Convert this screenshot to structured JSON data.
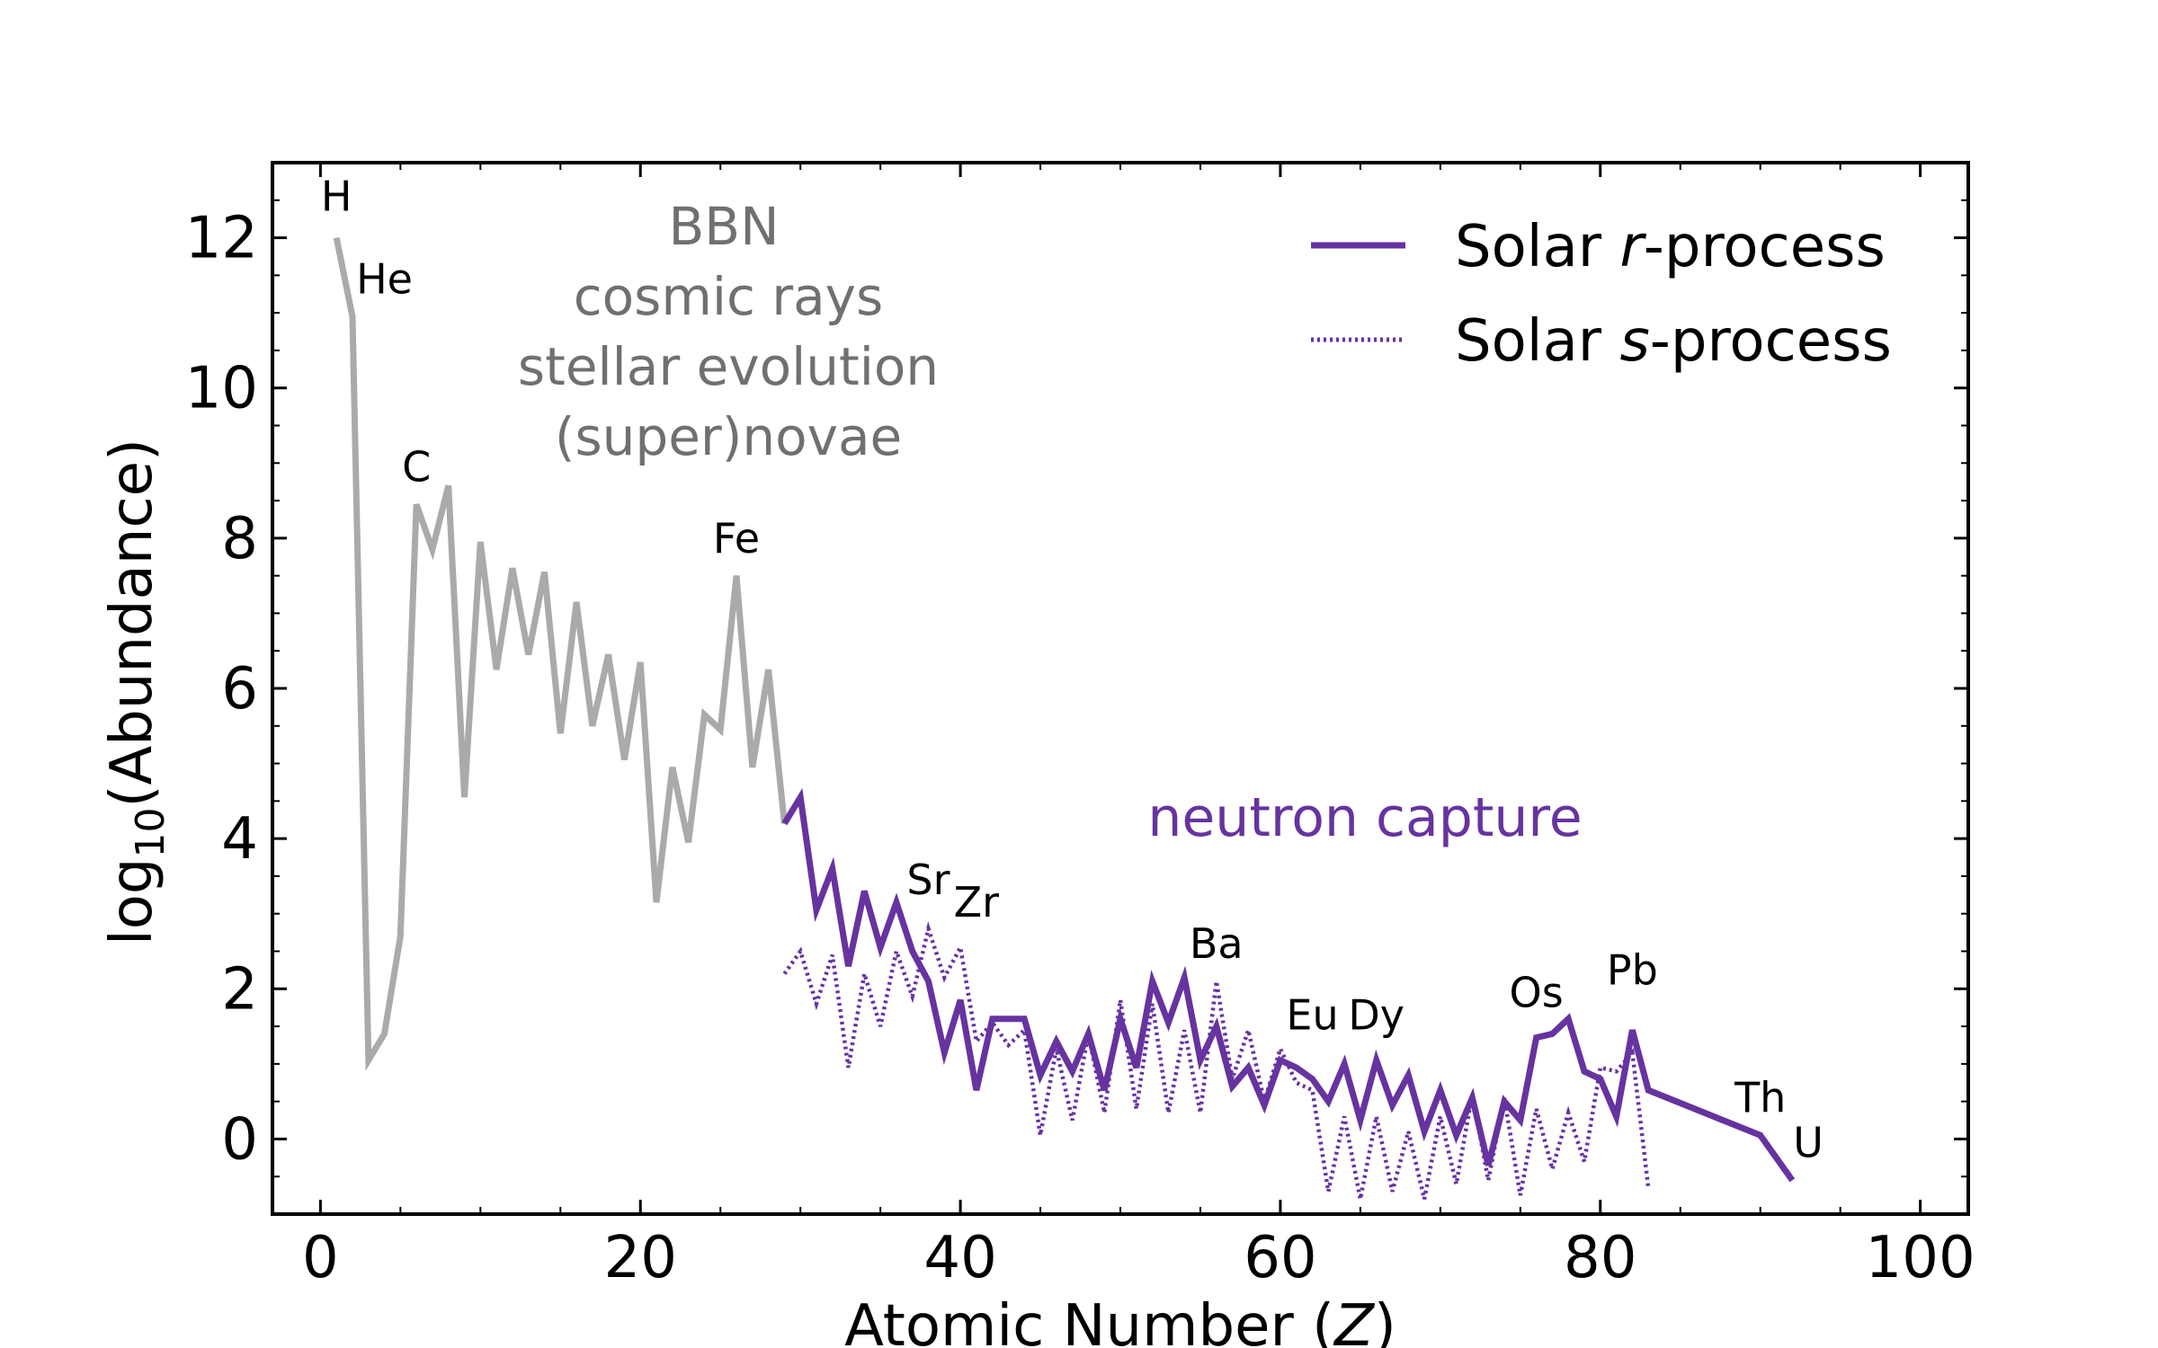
{
  "chart_data": {
    "type": "line",
    "xlabel_main": "Atomic Number (",
    "xlabel_var": "Z",
    "xlabel_end": ")",
    "ylabel_main": "log",
    "ylabel_sub": "10",
    "ylabel_end": "(Abundance)",
    "xlim": [
      -3,
      103
    ],
    "ylim": [
      -1.0,
      13.0
    ],
    "xticks": [
      0,
      20,
      40,
      60,
      80,
      100
    ],
    "yticks": [
      0,
      2,
      4,
      6,
      8,
      10,
      12
    ],
    "legend_position": "top-right",
    "series": [
      {
        "name_pre": "Solar ",
        "name_var": "r",
        "name_post": "-process",
        "style": "solid",
        "color": "#6633a0",
        "points": [
          [
            29,
            4.2
          ],
          [
            30,
            4.55
          ],
          [
            31,
            3.05
          ],
          [
            32,
            3.6
          ],
          [
            33,
            2.3
          ],
          [
            34,
            3.3
          ],
          [
            35,
            2.55
          ],
          [
            36,
            3.15
          ],
          [
            37,
            2.5
          ],
          [
            38,
            2.1
          ],
          [
            39,
            1.15
          ],
          [
            40,
            1.85
          ],
          [
            41,
            0.65
          ],
          [
            42,
            1.6
          ],
          [
            43,
            1.6
          ],
          [
            44,
            1.6
          ],
          [
            45,
            0.85
          ],
          [
            46,
            1.3
          ],
          [
            47,
            0.9
          ],
          [
            48,
            1.4
          ],
          [
            49,
            0.65
          ],
          [
            50,
            1.6
          ],
          [
            51,
            0.95
          ],
          [
            52,
            2.1
          ],
          [
            53,
            1.55
          ],
          [
            54,
            2.15
          ],
          [
            55,
            1.05
          ],
          [
            56,
            1.5
          ],
          [
            57,
            0.7
          ],
          [
            58,
            0.95
          ],
          [
            59,
            0.45
          ],
          [
            60,
            1.05
          ],
          [
            61,
            0.95
          ],
          [
            62,
            0.8
          ],
          [
            63,
            0.5
          ],
          [
            64,
            1.0
          ],
          [
            65,
            0.25
          ],
          [
            66,
            1.05
          ],
          [
            67,
            0.45
          ],
          [
            68,
            0.85
          ],
          [
            69,
            0.1
          ],
          [
            70,
            0.65
          ],
          [
            71,
            0.05
          ],
          [
            72,
            0.55
          ],
          [
            73,
            -0.35
          ],
          [
            74,
            0.5
          ],
          [
            75,
            0.25
          ],
          [
            76,
            1.35
          ],
          [
            77,
            1.4
          ],
          [
            78,
            1.6
          ],
          [
            79,
            0.9
          ],
          [
            80,
            0.8
          ],
          [
            81,
            0.3
          ],
          [
            82,
            1.45
          ],
          [
            83,
            0.65
          ],
          [
            90,
            0.05
          ],
          [
            92,
            -0.55
          ]
        ]
      },
      {
        "name_pre": "Solar ",
        "name_var": "s",
        "name_post": "-process",
        "style": "dotted",
        "color": "#6633a0",
        "points": [
          [
            29,
            2.2
          ],
          [
            30,
            2.5
          ],
          [
            31,
            1.8
          ],
          [
            32,
            2.45
          ],
          [
            33,
            0.95
          ],
          [
            34,
            2.2
          ],
          [
            35,
            1.5
          ],
          [
            36,
            2.5
          ],
          [
            37,
            1.9
          ],
          [
            38,
            2.8
          ],
          [
            39,
            2.15
          ],
          [
            40,
            2.55
          ],
          [
            41,
            1.3
          ],
          [
            42,
            1.55
          ],
          [
            43,
            1.25
          ],
          [
            44,
            1.45
          ],
          [
            45,
            0.05
          ],
          [
            46,
            1.2
          ],
          [
            47,
            0.25
          ],
          [
            48,
            1.4
          ],
          [
            49,
            0.35
          ],
          [
            50,
            1.85
          ],
          [
            51,
            0.4
          ],
          [
            52,
            1.8
          ],
          [
            53,
            0.35
          ],
          [
            54,
            1.45
          ],
          [
            55,
            0.35
          ],
          [
            56,
            2.1
          ],
          [
            57,
            0.8
          ],
          [
            58,
            1.45
          ],
          [
            59,
            0.5
          ],
          [
            60,
            1.2
          ],
          [
            61,
            0.75
          ],
          [
            62,
            0.65
          ],
          [
            63,
            -0.7
          ],
          [
            64,
            0.3
          ],
          [
            65,
            -0.8
          ],
          [
            66,
            0.3
          ],
          [
            67,
            -0.7
          ],
          [
            68,
            0.1
          ],
          [
            69,
            -0.8
          ],
          [
            70,
            0.3
          ],
          [
            71,
            -0.6
          ],
          [
            72,
            0.6
          ],
          [
            73,
            -0.55
          ],
          [
            74,
            0.55
          ],
          [
            75,
            -0.75
          ],
          [
            76,
            0.4
          ],
          [
            77,
            -0.4
          ],
          [
            78,
            0.35
          ],
          [
            79,
            -0.3
          ],
          [
            80,
            0.95
          ],
          [
            81,
            0.9
          ],
          [
            82,
            1.15
          ],
          [
            83,
            -0.65
          ]
        ]
      },
      {
        "name_pre": "",
        "name_var": "",
        "name_post": "",
        "style": "solid",
        "color": "#aaaaaa",
        "points": [
          [
            1,
            12.0
          ],
          [
            2,
            10.95
          ],
          [
            3,
            1.05
          ],
          [
            4,
            1.4
          ],
          [
            5,
            2.7
          ],
          [
            6,
            8.45
          ],
          [
            7,
            7.85
          ],
          [
            8,
            8.7
          ],
          [
            9,
            4.55
          ],
          [
            10,
            7.95
          ],
          [
            11,
            6.25
          ],
          [
            12,
            7.6
          ],
          [
            13,
            6.45
          ],
          [
            14,
            7.55
          ],
          [
            15,
            5.4
          ],
          [
            16,
            7.15
          ],
          [
            17,
            5.5
          ],
          [
            18,
            6.45
          ],
          [
            19,
            5.05
          ],
          [
            20,
            6.35
          ],
          [
            21,
            3.15
          ],
          [
            22,
            4.95
          ],
          [
            23,
            3.95
          ],
          [
            24,
            5.65
          ],
          [
            25,
            5.45
          ],
          [
            26,
            7.5
          ],
          [
            27,
            4.95
          ],
          [
            28,
            6.25
          ],
          [
            29,
            4.2
          ]
        ]
      }
    ],
    "element_labels": [
      {
        "text": "H",
        "x": 1.0,
        "y": 12.55
      },
      {
        "text": "He",
        "x": 4.0,
        "y": 11.45
      },
      {
        "text": "C",
        "x": 6.0,
        "y": 8.95
      },
      {
        "text": "Fe",
        "x": 26.0,
        "y": 8.0
      },
      {
        "text": "Sr",
        "x": 38.0,
        "y": 3.45
      },
      {
        "text": "Zr",
        "x": 41.0,
        "y": 3.15
      },
      {
        "text": "Ba",
        "x": 56.0,
        "y": 2.6
      },
      {
        "text": "Eu",
        "x": 62.0,
        "y": 1.65
      },
      {
        "text": "Dy",
        "x": 66.0,
        "y": 1.65
      },
      {
        "text": "Os",
        "x": 76.0,
        "y": 1.95
      },
      {
        "text": "Pb",
        "x": 82.0,
        "y": 2.25
      },
      {
        "text": "Th",
        "x": 90.0,
        "y": 0.55
      },
      {
        "text": "U",
        "x": 93.0,
        "y": -0.05
      }
    ],
    "annotation_gray": [
      "BBN",
      "cosmic rays",
      "stellar evolution",
      "(super)novae"
    ],
    "annotation_purple": "neutron capture"
  }
}
